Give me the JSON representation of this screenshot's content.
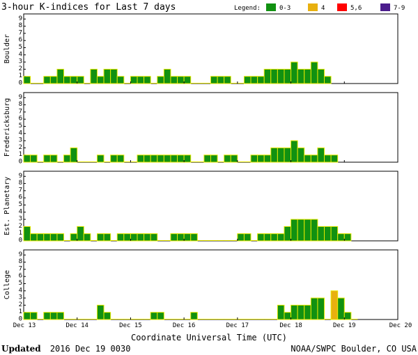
{
  "title": "3-hour K-indices for Last 7 days",
  "legend": {
    "label": "Legend:",
    "items": [
      {
        "label": "0-3",
        "color": "#119111"
      },
      {
        "label": "4",
        "color": "#e8b00f"
      },
      {
        "label": "5,6",
        "color": "#ff0000"
      },
      {
        "label": "7-9",
        "color": "#4a1c8c"
      }
    ]
  },
  "footer": {
    "updated_label": "Updated",
    "updated_value": "2016 Dec 19 0030",
    "source": "NOAA/SWPC Boulder, CO USA"
  },
  "chart_data": {
    "type": "bar",
    "xlabel": "Coordinate Universal Time (UTC)",
    "x_ticks": [
      "Dec 13",
      "Dec 14",
      "Dec 15",
      "Dec 16",
      "Dec 17",
      "Dec 18",
      "Dec 19",
      "Dec 20"
    ],
    "ylim": [
      0,
      9
    ],
    "y_ticks": [
      0,
      1,
      2,
      3,
      4,
      5,
      6,
      7,
      8,
      9
    ],
    "bar_outline_color": "#e8e800",
    "panels": [
      {
        "name": "Boulder",
        "values": [
          1,
          0,
          0,
          1,
          1,
          2,
          1,
          1,
          1,
          0,
          2,
          1,
          2,
          2,
          1,
          0,
          1,
          1,
          1,
          0,
          1,
          2,
          1,
          1,
          1,
          0,
          0,
          0,
          1,
          1,
          1,
          0,
          0,
          1,
          1,
          1,
          2,
          2,
          2,
          2,
          3,
          2,
          2,
          3,
          2,
          1
        ]
      },
      {
        "name": "Fredericksburg",
        "values": [
          1,
          1,
          0,
          1,
          1,
          0,
          1,
          2,
          0,
          0,
          0,
          1,
          0,
          1,
          1,
          0,
          0,
          1,
          1,
          1,
          1,
          1,
          1,
          1,
          1,
          0,
          0,
          1,
          1,
          0,
          1,
          1,
          0,
          0,
          1,
          1,
          1,
          2,
          2,
          2,
          3,
          2,
          1,
          1,
          2,
          1,
          1
        ]
      },
      {
        "name": "Est. Planetary",
        "values": [
          2,
          1,
          1,
          1,
          1,
          1,
          0,
          1,
          2,
          1,
          0,
          1,
          1,
          0,
          1,
          1,
          1,
          1,
          1,
          1,
          0,
          0,
          1,
          1,
          1,
          1,
          0,
          0,
          0,
          0,
          0,
          0,
          1,
          1,
          0,
          1,
          1,
          1,
          1,
          2,
          3,
          3,
          3,
          3,
          2,
          2,
          2,
          1,
          1
        ]
      },
      {
        "name": "College",
        "values": [
          1,
          1,
          0,
          1,
          1,
          1,
          0,
          0,
          0,
          0,
          0,
          2,
          1,
          0,
          0,
          0,
          0,
          0,
          0,
          1,
          1,
          0,
          0,
          0,
          0,
          1,
          0,
          0,
          0,
          0,
          0,
          0,
          0,
          0,
          0,
          0,
          0,
          0,
          2,
          1,
          2,
          2,
          2,
          3,
          3,
          0,
          4,
          3,
          1,
          0
        ]
      }
    ]
  }
}
